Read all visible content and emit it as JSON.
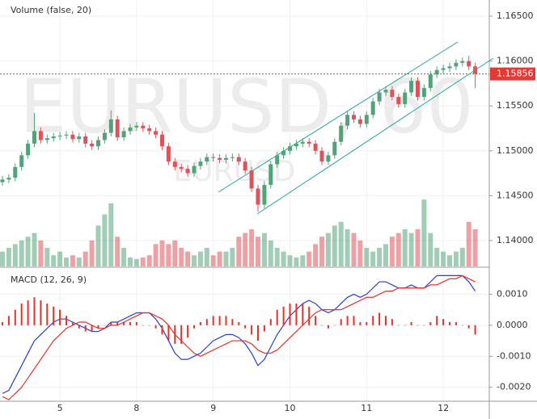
{
  "chart_data": [
    {
      "type": "candlestick",
      "watermark": "EURUSD, 60",
      "subtitle": "EURUSD",
      "categories": [
        null,
        null,
        null,
        null,
        null,
        null,
        null,
        null,
        null,
        "5",
        null,
        null,
        null,
        null,
        null,
        null,
        null,
        null,
        null,
        null,
        null,
        "8",
        null,
        null,
        null,
        null,
        null,
        null,
        null,
        null,
        null,
        null,
        null,
        "9",
        null,
        null,
        null,
        null,
        null,
        null,
        null,
        null,
        null,
        null,
        null,
        "10",
        null,
        null,
        null,
        null,
        null,
        null,
        null,
        null,
        null,
        null,
        null,
        "11",
        null,
        null,
        null,
        null,
        null,
        null,
        null,
        null,
        null,
        null,
        null,
        "12",
        null,
        null,
        null,
        null,
        null
      ],
      "open": [
        1.1465,
        1.1468,
        1.147,
        1.1482,
        1.1495,
        1.1508,
        1.1522,
        1.1512,
        1.1514,
        1.1516,
        1.1517,
        1.1518,
        1.1513,
        1.1516,
        1.1508,
        1.1505,
        1.1512,
        1.152,
        1.1535,
        1.1515,
        1.1522,
        1.1526,
        1.1528,
        1.1525,
        1.1522,
        1.1518,
        1.1505,
        1.1488,
        1.1482,
        1.148,
        1.1475,
        1.1483,
        1.1488,
        1.1493,
        1.1492,
        1.149,
        1.1492,
        1.1493,
        1.1488,
        1.1478,
        1.1458,
        1.144,
        1.1462,
        1.1485,
        1.1495,
        1.15,
        1.1505,
        1.1508,
        1.151,
        1.1508,
        1.15,
        1.1488,
        1.1495,
        1.151,
        1.1528,
        1.154,
        1.1535,
        1.153,
        1.154,
        1.1555,
        1.1565,
        1.1568,
        1.156,
        1.1552,
        1.1565,
        1.1578,
        1.156,
        1.157,
        1.1585,
        1.159,
        1.1592,
        1.1594,
        1.1598,
        1.16,
        1.1594
      ],
      "high": [
        1.1472,
        1.1474,
        1.1486,
        1.1499,
        1.1512,
        1.1542,
        1.1526,
        1.1518,
        1.152,
        1.1521,
        1.1522,
        1.1522,
        1.152,
        1.152,
        1.1512,
        1.1516,
        1.1524,
        1.1545,
        1.1539,
        1.1526,
        1.153,
        1.1532,
        1.1532,
        1.1529,
        1.1526,
        1.1522,
        1.1509,
        1.1492,
        1.1486,
        1.1484,
        1.1487,
        1.1492,
        1.1497,
        1.1497,
        1.1496,
        1.1496,
        1.1497,
        1.1497,
        1.1492,
        1.1482,
        1.1462,
        1.1466,
        1.1489,
        1.1499,
        1.1504,
        1.1509,
        1.1512,
        1.1514,
        1.1514,
        1.1512,
        1.1504,
        1.1499,
        1.1514,
        1.1532,
        1.1544,
        1.1544,
        1.1539,
        1.1544,
        1.1559,
        1.1569,
        1.1572,
        1.1572,
        1.1564,
        1.1569,
        1.1582,
        1.1582,
        1.1574,
        1.1589,
        1.1594,
        1.1596,
        1.1598,
        1.1602,
        1.1604,
        1.1606,
        1.1598
      ],
      "low": [
        1.1461,
        1.1464,
        1.1466,
        1.1478,
        1.1491,
        1.1504,
        1.1508,
        1.1508,
        1.151,
        1.1512,
        1.1513,
        1.1509,
        1.1509,
        1.1504,
        1.1501,
        1.1501,
        1.1508,
        1.1516,
        1.1511,
        1.1511,
        1.1518,
        1.1522,
        1.1521,
        1.1518,
        1.1514,
        1.1501,
        1.1484,
        1.1478,
        1.1476,
        1.1471,
        1.1471,
        1.1479,
        1.1484,
        1.1488,
        1.1486,
        1.1486,
        1.1488,
        1.1484,
        1.1474,
        1.1454,
        1.1432,
        1.1436,
        1.1458,
        1.1481,
        1.1491,
        1.1496,
        1.1501,
        1.1504,
        1.1504,
        1.1496,
        1.1484,
        1.1484,
        1.1491,
        1.1506,
        1.1524,
        1.1531,
        1.1526,
        1.1526,
        1.1536,
        1.1551,
        1.1561,
        1.1556,
        1.1548,
        1.1548,
        1.1561,
        1.1556,
        1.1556,
        1.1566,
        1.1581,
        1.1586,
        1.1588,
        1.159,
        1.1594,
        1.159,
        1.157
      ],
      "close": [
        1.1468,
        1.147,
        1.1482,
        1.1495,
        1.1508,
        1.1522,
        1.1512,
        1.1514,
        1.1516,
        1.1517,
        1.1518,
        1.1513,
        1.1516,
        1.1508,
        1.1505,
        1.1512,
        1.152,
        1.1535,
        1.1515,
        1.1522,
        1.1526,
        1.1528,
        1.1525,
        1.1522,
        1.1518,
        1.1505,
        1.1488,
        1.1482,
        1.148,
        1.1475,
        1.1483,
        1.1488,
        1.1493,
        1.1492,
        1.149,
        1.1492,
        1.1493,
        1.1488,
        1.1478,
        1.1458,
        1.144,
        1.1462,
        1.1485,
        1.1495,
        1.15,
        1.1505,
        1.1508,
        1.151,
        1.1508,
        1.15,
        1.1488,
        1.1495,
        1.151,
        1.1528,
        1.154,
        1.1535,
        1.153,
        1.154,
        1.1555,
        1.1565,
        1.1568,
        1.156,
        1.1552,
        1.1565,
        1.1578,
        1.156,
        1.157,
        1.1585,
        1.159,
        1.1592,
        1.1594,
        1.1598,
        1.16,
        1.1594,
        1.15856
      ],
      "up_color": "#53a37a",
      "down_color": "#e0525a",
      "last_price_color": "#e53935",
      "ylim": [
        1.13712,
        1.1668
      ],
      "yticks": [
        {
          "value": 1.14,
          "label": "1.14000"
        },
        {
          "value": 1.145,
          "label": "1.14500"
        },
        {
          "value": 1.15,
          "label": "1.15000"
        },
        {
          "value": 1.155,
          "label": "1.15500"
        },
        {
          "value": 1.16,
          "label": "1.16000"
        },
        {
          "value": 1.165,
          "label": "1.16500"
        }
      ],
      "grid": true,
      "volume": {
        "title": "Volume (false, 20)",
        "ylim": [
          0,
          100
        ],
        "values": [
          20,
          25,
          30,
          35,
          40,
          45,
          35,
          25,
          15,
          20,
          12,
          15,
          12,
          20,
          35,
          55,
          70,
          85,
          40,
          25,
          12,
          10,
          12,
          15,
          30,
          35,
          30,
          35,
          25,
          20,
          15,
          20,
          25,
          15,
          20,
          20,
          25,
          40,
          45,
          50,
          40,
          45,
          35,
          25,
          20,
          15,
          12,
          15,
          20,
          30,
          40,
          45,
          55,
          60,
          50,
          45,
          35,
          25,
          20,
          25,
          30,
          40,
          45,
          50,
          45,
          50,
          90,
          45,
          25,
          20,
          15,
          20,
          25,
          60,
          50
        ]
      }
    },
    {
      "type": "macd",
      "title": "MACD (12, 26, 9)",
      "ylim": [
        -0.00245,
        0.00187
      ],
      "yticks": [
        {
          "value": -0.002,
          "label": "-0.0020"
        },
        {
          "value": -0.001,
          "label": "-0.0010"
        },
        {
          "value": 0,
          "label": "0.0000"
        },
        {
          "value": 0.001,
          "label": "0.0010"
        }
      ],
      "series": [
        {
          "color": "#2b3bd6",
          "values": [
            -0.0022,
            -0.0021,
            -0.0017,
            -0.0013,
            -0.0009,
            -0.0005,
            -0.0003,
            -0.0001,
            0.0001,
            0.0002,
            0.0002,
            0.0001,
            0,
            -0.0001,
            -0.0002,
            -0.0002,
            -0.0001,
            0.0001,
            0.0001,
            0.0002,
            0.0003,
            0.0004,
            0.0004,
            0.0004,
            0.0002,
            -0.0001,
            -0.0005,
            -0.0009,
            -0.0011,
            -0.0011,
            -0.001,
            -0.0009,
            -0.0007,
            -0.0005,
            -0.0004,
            -0.0003,
            -0.0003,
            -0.0004,
            -0.0006,
            -0.0009,
            -0.0013,
            -0.0011,
            -0.0007,
            -0.0003,
            0,
            0.0003,
            0.0005,
            0.0007,
            0.0008,
            0.0007,
            0.0005,
            0.0004,
            0.0005,
            0.0007,
            0.0009,
            0.001,
            0.0009,
            0.001,
            0.0012,
            0.0014,
            0.0014,
            0.0013,
            0.0012,
            0.0012,
            0.0013,
            0.0012,
            0.0012,
            0.0014,
            0.0016,
            0.0016,
            0.0016,
            0.0016,
            0.0016,
            0.0014,
            0.0011
          ]
        },
        {
          "color": "#e8302a",
          "values": [
            -0.0023,
            -0.0024,
            -0.0022,
            -0.002,
            -0.0017,
            -0.0014,
            -0.0011,
            -0.0008,
            -0.0005,
            -0.0003,
            -0.0001,
            0,
            0.0001,
            0.0001,
            0,
            -0.0001,
            -0.0001,
            0,
            0,
            0.0001,
            0.0002,
            0.0003,
            0.0004,
            0.0004,
            0.0003,
            0.0002,
            0,
            -0.0003,
            -0.0005,
            -0.0007,
            -0.0009,
            -0.001,
            -0.0009,
            -0.0008,
            -0.0007,
            -0.0006,
            -0.0005,
            -0.0005,
            -0.0005,
            -0.0006,
            -0.0008,
            -0.0009,
            -0.0009,
            -0.0008,
            -0.0006,
            -0.0004,
            -0.0002,
            0,
            0.0002,
            0.0004,
            0.0005,
            0.0005,
            0.0005,
            0.0005,
            0.0006,
            0.0007,
            0.0008,
            0.0009,
            0.0009,
            0.001,
            0.0011,
            0.0011,
            0.0012,
            0.0012,
            0.0012,
            0.0012,
            0.0012,
            0.0013,
            0.0013,
            0.0014,
            0.0015,
            0.0015,
            0.0016,
            0.0015,
            0.0014
          ]
        },
        {
          "type": "histogram",
          "color": "#e8302a",
          "values": [
            0.0001,
            0.0003,
            0.0005,
            0.0007,
            0.0008,
            0.0009,
            0.0008,
            0.0007,
            0.0006,
            0.0005,
            0.0003,
            0.0001,
            -0.0001,
            -0.0002,
            -0.0002,
            -0.0001,
            0,
            0.0001,
            0.0001,
            0.0001,
            0.0001,
            0.0001,
            0,
            0,
            -0.0001,
            -0.0003,
            -0.0005,
            -0.0006,
            -0.0006,
            -0.0004,
            -0.0001,
            0.0001,
            0.0002,
            0.0003,
            0.0003,
            0.0003,
            0.0002,
            0.0001,
            -0.0001,
            -0.0003,
            -0.0005,
            -0.0002,
            0.0002,
            0.0005,
            0.0006,
            0.0007,
            0.0007,
            0.0007,
            0.0006,
            0.0003,
            0,
            -0.0001,
            0,
            0.0002,
            0.0003,
            0.0003,
            0.0001,
            0.0001,
            0.0003,
            0.0004,
            0.0003,
            0.0002,
            0,
            0,
            0.0001,
            0,
            0,
            0.0001,
            0.0003,
            0.0002,
            0.0001,
            0.0001,
            0,
            -0.0001,
            -0.0003
          ]
        }
      ]
    }
  ]
}
